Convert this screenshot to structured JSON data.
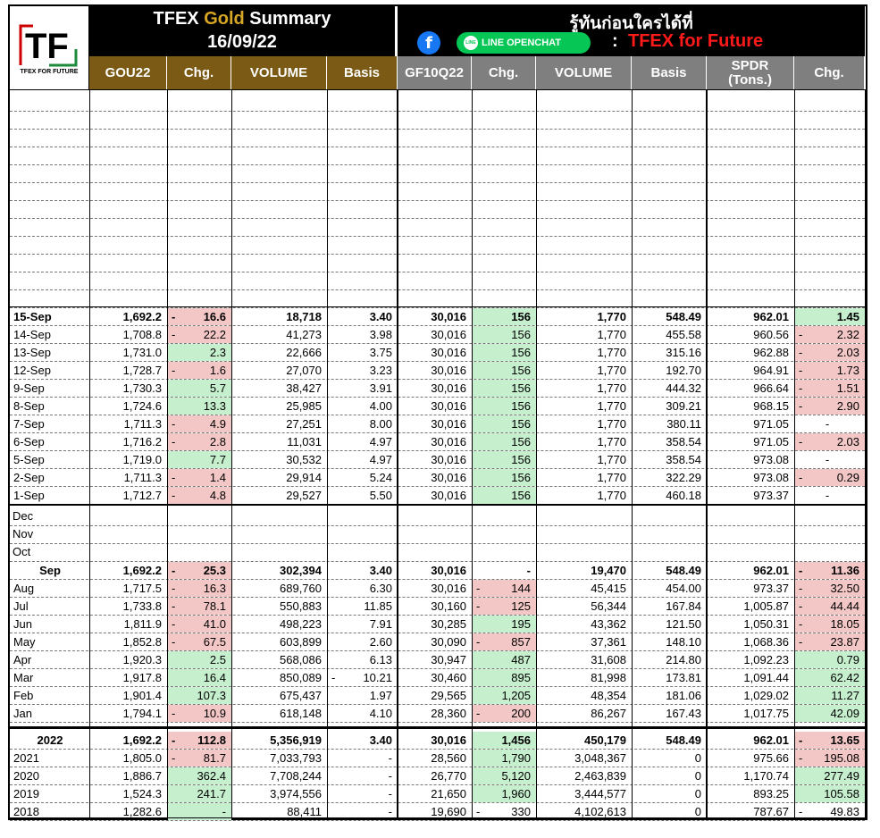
{
  "logo_text": "TF",
  "logo_sub": "TFEX FOR FUTURE",
  "title_prefix": "TFEX ",
  "title_gold": "Gold",
  "title_suffix": " Summary",
  "date": "16/09/22",
  "thai_tagline": "รู้ทันก่อนใครได้ที่",
  "line_label": "LINE OPENCHAT",
  "line_icon": "LINE",
  "colon": ":",
  "brand": "TFEX for Future",
  "columns": [
    "GOU22",
    "Chg.",
    "VOLUME",
    "Basis",
    "GF10Q22",
    "Chg.",
    "VOLUME",
    "Basis",
    "SPDR (Tons.)",
    "Chg."
  ],
  "daily": [
    {
      "d": "15-Sep",
      "p": "1,692.2",
      "c": "16.6",
      "cn": true,
      "cc": "red",
      "v": "18,718",
      "bs": "3.40",
      "gf": "30,016",
      "gc": "156",
      "gcn": false,
      "gcc": "green",
      "gv": "1,770",
      "gb": "548.49",
      "sp": "962.01",
      "sc": "1.45",
      "scn": false,
      "scc": "green",
      "bold": true
    },
    {
      "d": "14-Sep",
      "p": "1,708.8",
      "c": "22.2",
      "cn": true,
      "cc": "red",
      "v": "41,273",
      "bs": "3.98",
      "gf": "30,016",
      "gc": "156",
      "gcc": "green",
      "gv": "1,770",
      "gb": "455.58",
      "sp": "960.56",
      "sc": "2.32",
      "scn": true,
      "scc": "red"
    },
    {
      "d": "13-Sep",
      "p": "1,731.0",
      "c": "2.3",
      "cc": "green",
      "v": "22,666",
      "bs": "3.75",
      "gf": "30,016",
      "gc": "156",
      "gcc": "green",
      "gv": "1,770",
      "gb": "315.16",
      "sp": "962.88",
      "sc": "2.03",
      "scn": true,
      "scc": "red"
    },
    {
      "d": "12-Sep",
      "p": "1,728.7",
      "c": "1.6",
      "cn": true,
      "cc": "red",
      "v": "27,070",
      "bs": "3.23",
      "gf": "30,016",
      "gc": "156",
      "gcc": "green",
      "gv": "1,770",
      "gb": "192.70",
      "sp": "964.91",
      "sc": "1.73",
      "scn": true,
      "scc": "red"
    },
    {
      "d": "9-Sep",
      "p": "1,730.3",
      "c": "5.7",
      "cc": "green",
      "v": "38,427",
      "bs": "3.91",
      "gf": "30,016",
      "gc": "156",
      "gcc": "green",
      "gv": "1,770",
      "gb": "444.32",
      "sp": "966.64",
      "sc": "1.51",
      "scn": true,
      "scc": "red"
    },
    {
      "d": "8-Sep",
      "p": "1,724.6",
      "c": "13.3",
      "cc": "green",
      "v": "25,985",
      "bs": "4.00",
      "gf": "30,016",
      "gc": "156",
      "gcc": "green",
      "gv": "1,770",
      "gb": "309.21",
      "sp": "968.15",
      "sc": "2.90",
      "scn": true,
      "scc": "red"
    },
    {
      "d": "7-Sep",
      "p": "1,711.3",
      "c": "4.9",
      "cn": true,
      "cc": "red",
      "v": "27,251",
      "bs": "8.00",
      "gf": "30,016",
      "gc": "156",
      "gcc": "green",
      "gv": "1,770",
      "gb": "380.11",
      "sp": "971.05",
      "sc": "-",
      "scc": ""
    },
    {
      "d": "6-Sep",
      "p": "1,716.2",
      "c": "2.8",
      "cn": true,
      "cc": "red",
      "v": "11,031",
      "bs": "4.97",
      "gf": "30,016",
      "gc": "156",
      "gcc": "green",
      "gv": "1,770",
      "gb": "358.54",
      "sp": "971.05",
      "sc": "2.03",
      "scn": true,
      "scc": "red"
    },
    {
      "d": "5-Sep",
      "p": "1,719.0",
      "c": "7.7",
      "cc": "green",
      "v": "30,532",
      "bs": "4.97",
      "gf": "30,016",
      "gc": "156",
      "gcc": "green",
      "gv": "1,770",
      "gb": "358.54",
      "sp": "973.08",
      "sc": "-",
      "scc": ""
    },
    {
      "d": "2-Sep",
      "p": "1,711.3",
      "c": "1.4",
      "cn": true,
      "cc": "red",
      "v": "29,914",
      "bs": "5.24",
      "gf": "30,016",
      "gc": "156",
      "gcc": "green",
      "gv": "1,770",
      "gb": "322.29",
      "sp": "973.08",
      "sc": "0.29",
      "scn": true,
      "scc": "red"
    },
    {
      "d": "1-Sep",
      "p": "1,712.7",
      "c": "4.8",
      "cn": true,
      "cc": "red",
      "v": "29,527",
      "bs": "5.50",
      "gf": "30,016",
      "gc": "156",
      "gcc": "green",
      "gv": "1,770",
      "gb": "460.18",
      "sp": "973.37",
      "sc": "-",
      "scc": ""
    }
  ],
  "monthly": [
    {
      "d": "Dec"
    },
    {
      "d": "Nov"
    },
    {
      "d": "Oct"
    },
    {
      "d": "Sep",
      "p": "1,692.2",
      "c": "25.3",
      "cn": true,
      "cc": "red",
      "v": "302,394",
      "bs": "3.40",
      "gf": "30,016",
      "gc": "-",
      "gcc": "",
      "gv": "19,470",
      "gb": "548.49",
      "sp": "962.01",
      "sc": "11.36",
      "scn": true,
      "scc": "red",
      "bold": true,
      "center": true
    },
    {
      "d": "Aug",
      "p": "1,717.5",
      "c": "16.3",
      "cn": true,
      "cc": "red",
      "v": "689,760",
      "bs": "6.30",
      "gf": "30,016",
      "gc": "144",
      "gcn": true,
      "gcc": "red",
      "gv": "45,415",
      "gb": "454.00",
      "sp": "973.37",
      "sc": "32.50",
      "scn": true,
      "scc": "red"
    },
    {
      "d": "Jul",
      "p": "1,733.8",
      "c": "78.1",
      "cn": true,
      "cc": "red",
      "v": "550,883",
      "bs": "11.85",
      "gf": "30,160",
      "gc": "125",
      "gcn": true,
      "gcc": "red",
      "gv": "56,344",
      "gb": "167.84",
      "sp": "1,005.87",
      "sc": "44.44",
      "scn": true,
      "scc": "red"
    },
    {
      "d": "Jun",
      "p": "1,811.9",
      "c": "41.0",
      "cn": true,
      "cc": "red",
      "v": "498,223",
      "bs": "7.91",
      "gf": "30,285",
      "gc": "195",
      "gcc": "green",
      "gv": "43,362",
      "gb": "121.50",
      "sp": "1,050.31",
      "sc": "18.05",
      "scn": true,
      "scc": "red"
    },
    {
      "d": "May",
      "p": "1,852.8",
      "c": "67.5",
      "cn": true,
      "cc": "red",
      "v": "603,899",
      "bs": "2.60",
      "gf": "30,090",
      "gc": "857",
      "gcn": true,
      "gcc": "red",
      "gv": "37,361",
      "gb": "148.10",
      "sp": "1,068.36",
      "sc": "23.87",
      "scn": true,
      "scc": "red"
    },
    {
      "d": "Apr",
      "p": "1,920.3",
      "c": "2.5",
      "cc": "green",
      "v": "568,086",
      "bs": "6.13",
      "gf": "30,947",
      "gc": "487",
      "gcc": "green",
      "gv": "31,608",
      "gb": "214.80",
      "sp": "1,092.23",
      "sc": "0.79",
      "scc": "green"
    },
    {
      "d": "Mar",
      "p": "1,917.8",
      "c": "16.4",
      "cc": "green",
      "v": "850,089",
      "bs": "10.21",
      "bsn": true,
      "gf": "30,460",
      "gc": "895",
      "gcc": "green",
      "gv": "81,998",
      "gb": "173.81",
      "sp": "1,091.44",
      "sc": "62.42",
      "scc": "green"
    },
    {
      "d": "Feb",
      "p": "1,901.4",
      "c": "107.3",
      "cc": "green",
      "v": "675,437",
      "bs": "1.97",
      "gf": "29,565",
      "gc": "1,205",
      "gcc": "green",
      "gv": "48,354",
      "gb": "181.06",
      "sp": "1,029.02",
      "sc": "11.27",
      "scc": "green"
    },
    {
      "d": "Jan",
      "p": "1,794.1",
      "c": "10.9",
      "cn": true,
      "cc": "red",
      "v": "618,148",
      "bs": "4.10",
      "gf": "28,360",
      "gc": "200",
      "gcn": true,
      "gcc": "red",
      "gv": "86,267",
      "gb": "167.43",
      "sp": "1,017.75",
      "sc": "42.09",
      "scc": "green"
    }
  ],
  "yearly": [
    {
      "d": "2022",
      "p": "1,692.2",
      "c": "112.8",
      "cn": true,
      "cc": "red",
      "v": "5,356,919",
      "bs": "3.40",
      "gf": "30,016",
      "gc": "1,456",
      "gcc": "green",
      "gv": "450,179",
      "gb": "548.49",
      "sp": "962.01",
      "sc": "13.65",
      "scn": true,
      "scc": "red",
      "bold": true,
      "center": true
    },
    {
      "d": "2021",
      "p": "1,805.0",
      "c": "81.7",
      "cn": true,
      "cc": "red",
      "v": "7,033,793",
      "bs": "-",
      "gf": "28,560",
      "gc": "1,790",
      "gcc": "green",
      "gv": "3,048,367",
      "gb": "0",
      "sp": "975.66",
      "sc": "195.08",
      "scn": true,
      "scc": "red"
    },
    {
      "d": "2020",
      "p": "1,886.7",
      "c": "362.4",
      "cc": "green",
      "v": "7,708,244",
      "bs": "-",
      "gf": "26,770",
      "gc": "5,120",
      "gcc": "green",
      "gv": "2,463,839",
      "gb": "0",
      "sp": "1,170.74",
      "sc": "277.49",
      "scc": "green"
    },
    {
      "d": "2019",
      "p": "1,524.3",
      "c": "241.7",
      "cc": "green",
      "v": "3,974,556",
      "bs": "-",
      "gf": "21,650",
      "gc": "1,960",
      "gcc": "green",
      "gv": "3,444,577",
      "gb": "0",
      "sp": "893.25",
      "sc": "105.58",
      "scc": "green"
    },
    {
      "d": "2018",
      "p": "1,282.6",
      "c": "-",
      "cc": "green",
      "v": "88,411",
      "bs": "-",
      "gf": "19,690",
      "gc": "330",
      "gcn": true,
      "gcc": "",
      "gv": "4,102,613",
      "gb": "0",
      "sp": "787.67",
      "sc": "49.83",
      "scn": true,
      "scc": ""
    }
  ]
}
